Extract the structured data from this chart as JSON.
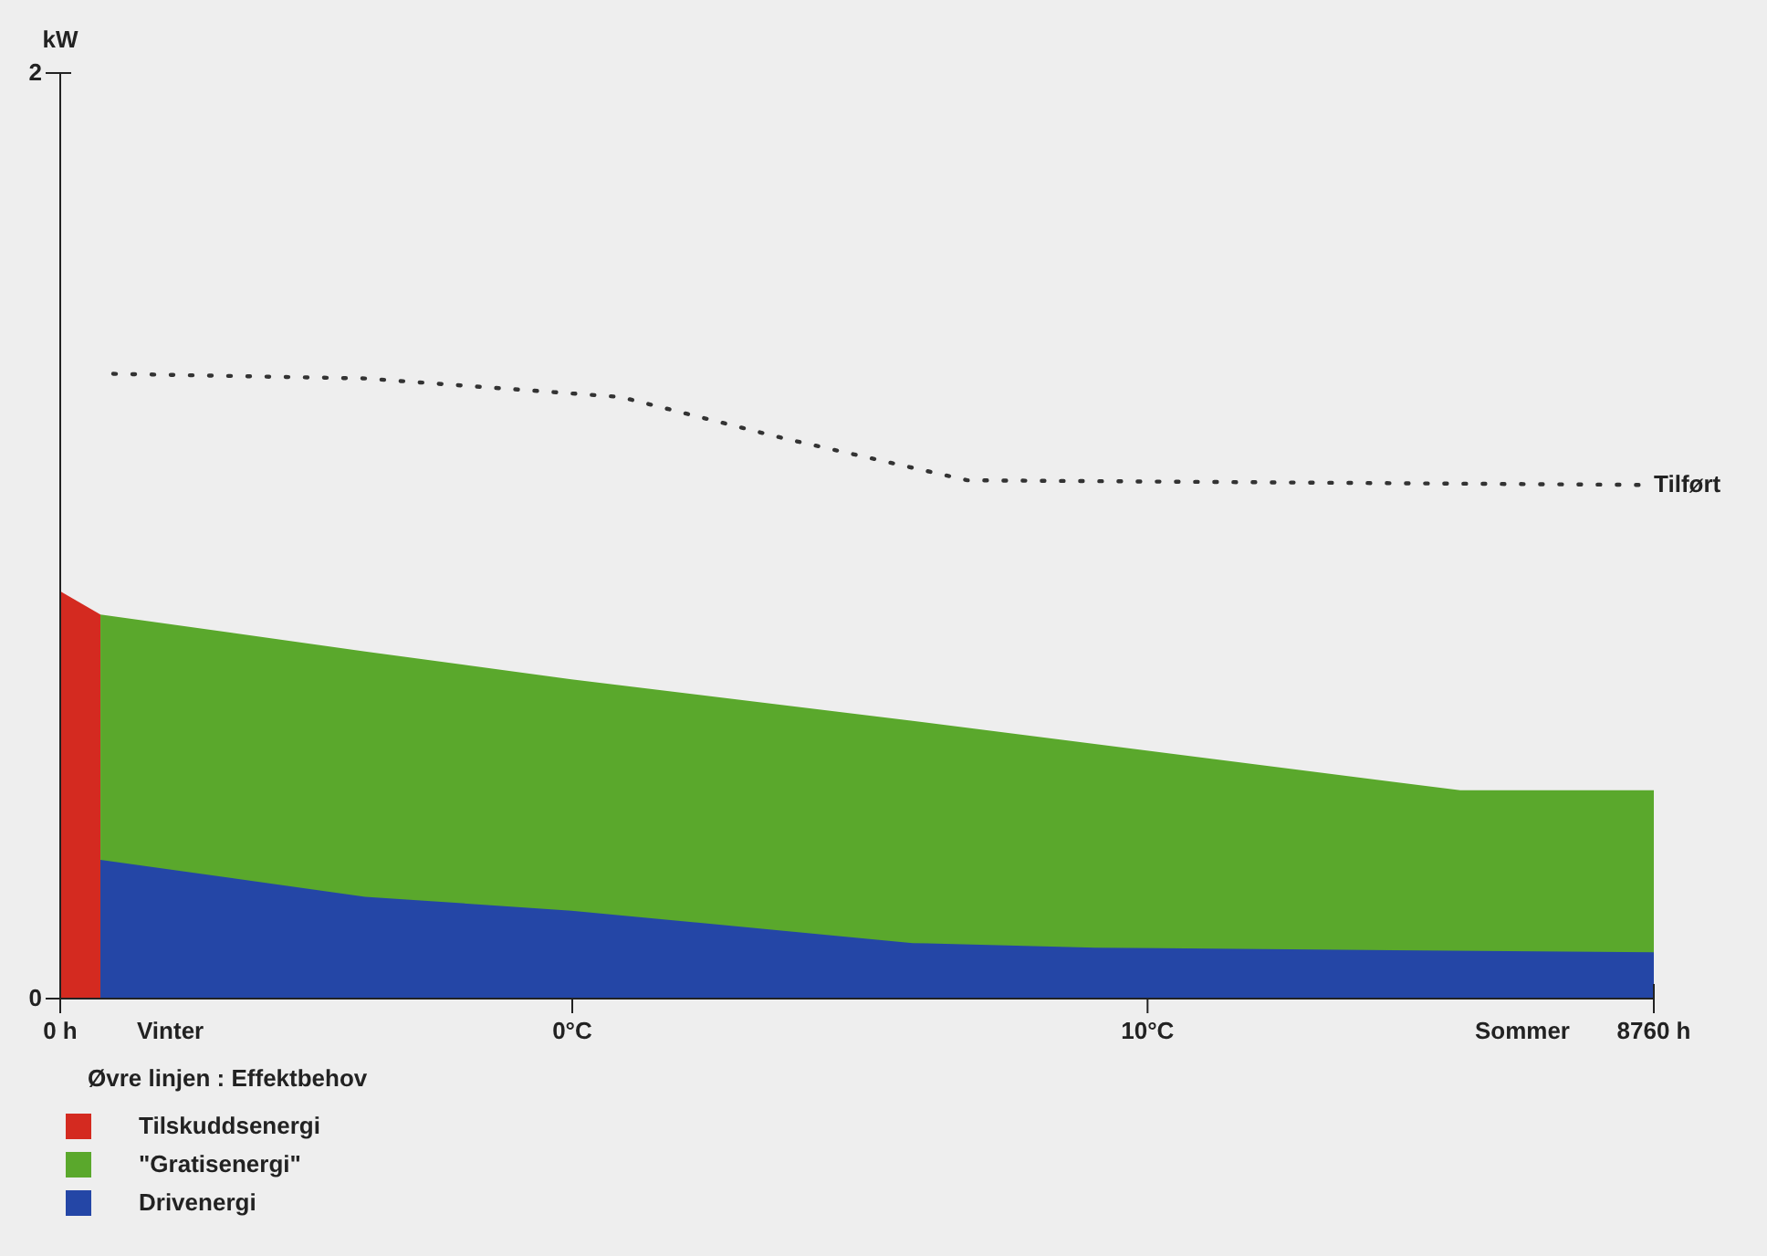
{
  "chart_data": {
    "type": "area",
    "ylabel": "kW",
    "legend_title": "Øvre linjen : Effektbehov",
    "xlim": [
      0,
      8760
    ],
    "ylim": [
      0,
      2
    ],
    "xticks": [
      {
        "value": 0,
        "label": "0 h"
      },
      {
        "value": 8760,
        "label": "8760 h"
      }
    ],
    "yticks": [
      0,
      2
    ],
    "x2lim": [
      -8.9,
      18.8
    ],
    "x2ticks": [
      {
        "value": 0,
        "label": "0°C"
      },
      {
        "value": 10,
        "label": "10°C"
      }
    ],
    "annotations": [
      "Vinter",
      "Sommer"
    ],
    "legend": "bottom left",
    "grid": false,
    "series": [
      {
        "name": "Tilskuddsenergi",
        "color": "#d42a20",
        "x": [
          0,
          221
        ],
        "values": [
          0.88,
          0.83
        ]
      },
      {
        "name": "\"Gratisenergi\"",
        "color": "#5aa82c",
        "x": [
          221,
          1676,
          2810,
          4686,
          6693,
          7696,
          8760
        ],
        "values": [
          0.83,
          0.75,
          0.69,
          0.6,
          0.5,
          0.45,
          0.45
        ]
      },
      {
        "name": "Drivenergi",
        "color": "#2446a6",
        "x": [
          221,
          1676,
          2810,
          4686,
          5689,
          8760
        ],
        "values": [
          0.3,
          0.22,
          0.19,
          0.12,
          0.11,
          0.1
        ]
      },
      {
        "name": "Tilført",
        "type": "line",
        "line_style": "dotted",
        "marker": "none",
        "color": "#333333",
        "x": [
          291,
          1676,
          3080,
          3984,
          4987,
          8700
        ],
        "values": [
          1.35,
          1.34,
          1.3,
          1.21,
          1.12,
          1.11
        ]
      }
    ]
  }
}
